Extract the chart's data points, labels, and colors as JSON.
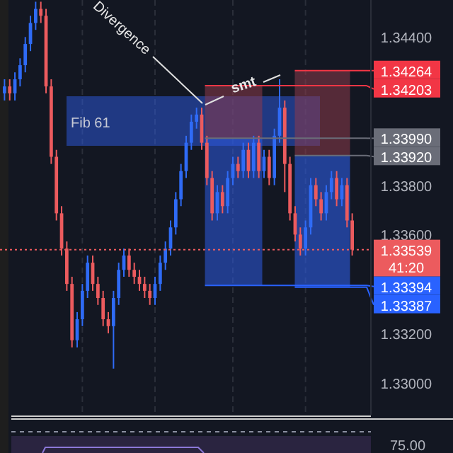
{
  "chart_data": {
    "type": "candlestick",
    "categories": [
      null,
      null,
      null,
      null,
      null,
      null,
      null,
      null,
      null,
      null,
      null,
      null,
      null,
      null,
      null,
      null,
      null,
      null,
      null,
      null,
      null,
      null,
      null,
      null,
      null,
      null,
      null,
      null,
      null,
      null,
      null,
      null,
      null,
      null,
      null,
      null,
      null,
      null,
      null,
      null,
      null,
      null,
      null,
      null,
      null,
      null,
      null,
      null,
      null,
      null,
      null,
      null,
      null,
      null,
      null,
      null,
      null,
      null,
      null,
      null,
      null,
      null,
      null,
      null,
      null,
      null,
      null,
      null
    ],
    "ohlc": [
      [
        1.34172,
        1.34229,
        1.34143,
        1.342
      ],
      [
        1.342,
        1.34229,
        1.34143,
        1.34172
      ],
      [
        1.34172,
        1.34257,
        1.34143,
        1.34229
      ],
      [
        1.34229,
        1.34314,
        1.342,
        1.34286
      ],
      [
        1.34286,
        1.344,
        1.34257,
        1.34372
      ],
      [
        1.34372,
        1.34486,
        1.34343,
        1.34457
      ],
      [
        1.34457,
        1.34543,
        1.34429,
        1.34514
      ],
      [
        1.34514,
        1.34543,
        1.34457,
        1.34486
      ],
      [
        1.34486,
        1.34514,
        1.34172,
        1.342
      ],
      [
        1.342,
        1.34229,
        1.33886,
        1.33915
      ],
      [
        1.33915,
        1.33943,
        1.33657,
        1.33686
      ],
      [
        1.33686,
        1.33715,
        1.33515,
        1.33543
      ],
      [
        1.33543,
        1.33572,
        1.33372,
        1.334
      ],
      [
        1.334,
        1.33429,
        1.33143,
        1.33172
      ],
      [
        1.33172,
        1.33286,
        1.33143,
        1.33257
      ],
      [
        1.33257,
        1.334,
        1.33229,
        1.33372
      ],
      [
        1.33372,
        1.33515,
        1.33343,
        1.33486
      ],
      [
        1.33486,
        1.33515,
        1.33372,
        1.334
      ],
      [
        1.334,
        1.33429,
        1.33315,
        1.33343
      ],
      [
        1.33343,
        1.33372,
        1.33229,
        1.33257
      ],
      [
        1.33257,
        1.33286,
        1.332,
        1.33229
      ],
      [
        1.33229,
        1.33372,
        1.33057,
        1.33343
      ],
      [
        1.33343,
        1.33486,
        1.33315,
        1.33457
      ],
      [
        1.33457,
        1.33543,
        1.33429,
        1.33515
      ],
      [
        1.33515,
        1.33543,
        1.33429,
        1.33457
      ],
      [
        1.33457,
        1.33486,
        1.334,
        1.33429
      ],
      [
        1.33429,
        1.33457,
        1.33372,
        1.334
      ],
      [
        1.334,
        1.33429,
        1.33343,
        1.33372
      ],
      [
        1.33372,
        1.334,
        1.33315,
        1.33343
      ],
      [
        1.33343,
        1.33429,
        1.33315,
        1.334
      ],
      [
        1.334,
        1.33515,
        1.33372,
        1.33486
      ],
      [
        1.33486,
        1.33572,
        1.33457,
        1.33543
      ],
      [
        1.33543,
        1.33657,
        1.33515,
        1.33629
      ],
      [
        1.33629,
        1.33772,
        1.336,
        1.33743
      ],
      [
        1.33743,
        1.33886,
        1.33715,
        1.33857
      ],
      [
        1.33857,
        1.34,
        1.33829,
        1.33972
      ],
      [
        1.33972,
        1.34086,
        1.33943,
        1.34057
      ],
      [
        1.34057,
        1.34114,
        1.34029,
        1.34086
      ],
      [
        1.34086,
        1.34114,
        1.33943,
        1.33972
      ],
      [
        1.33972,
        1.34,
        1.338,
        1.33829
      ],
      [
        1.33829,
        1.33857,
        1.33657,
        1.33686
      ],
      [
        1.33686,
        1.338,
        1.33657,
        1.33772
      ],
      [
        1.33772,
        1.338,
        1.33686,
        1.33715
      ],
      [
        1.33715,
        1.33857,
        1.33686,
        1.33829
      ],
      [
        1.33829,
        1.33915,
        1.338,
        1.33886
      ],
      [
        1.33886,
        1.33915,
        1.33829,
        1.33857
      ],
      [
        1.33857,
        1.33972,
        1.33829,
        1.33943
      ],
      [
        1.33943,
        1.33972,
        1.33829,
        1.33857
      ],
      [
        1.33857,
        1.34,
        1.33829,
        1.33972
      ],
      [
        1.33972,
        1.34,
        1.33829,
        1.33857
      ],
      [
        1.33857,
        1.33943,
        1.33829,
        1.33915
      ],
      [
        1.33915,
        1.33943,
        1.338,
        1.33829
      ],
      [
        1.33829,
        1.34029,
        1.338,
        1.34
      ],
      [
        1.34,
        1.34229,
        1.33972,
        1.34114
      ],
      [
        1.34114,
        1.34143,
        1.33772,
        1.33886
      ],
      [
        1.33886,
        1.33915,
        1.33657,
        1.33686
      ],
      [
        1.33686,
        1.33715,
        1.33572,
        1.336
      ],
      [
        1.336,
        1.33629,
        1.33515,
        1.33543
      ],
      [
        1.33543,
        1.33657,
        1.33515,
        1.33629
      ],
      [
        1.33629,
        1.33829,
        1.336,
        1.338
      ],
      [
        1.338,
        1.33829,
        1.33715,
        1.33743
      ],
      [
        1.33743,
        1.33772,
        1.33657,
        1.33686
      ],
      [
        1.33686,
        1.338,
        1.33657,
        1.33772
      ],
      [
        1.33772,
        1.33857,
        1.33743,
        1.33829
      ],
      [
        1.33829,
        1.33857,
        1.33715,
        1.33743
      ],
      [
        1.33743,
        1.33829,
        1.33715,
        1.338
      ],
      [
        1.338,
        1.33829,
        1.33629,
        1.33657
      ],
      [
        1.33657,
        1.33686,
        1.33515,
        1.33539
      ]
    ],
    "ylim": [
      1.3287,
      1.3455
    ],
    "yticks": [
      {
        "value": 1.344,
        "label": "1.34400"
      },
      {
        "value": 1.338,
        "label": "1.33800"
      },
      {
        "value": 1.336,
        "label": "1.33600"
      },
      {
        "value": 1.332,
        "label": "1.33200"
      },
      {
        "value": 1.33,
        "label": "1.33000"
      }
    ],
    "grid": "x",
    "ref_lines": [
      {
        "axis": "y",
        "value": 1.34264,
        "label": "1.34264",
        "color": "#f23645"
      },
      {
        "axis": "y",
        "value": 1.34203,
        "label": "1.34203",
        "color": "#f23645"
      },
      {
        "axis": "y",
        "value": 1.3399,
        "label": "1.33990",
        "color": "#6a6d78"
      },
      {
        "axis": "y",
        "value": 1.3392,
        "label": "1.33920",
        "color": "#6a6d78"
      },
      {
        "axis": "y",
        "value": 1.33539,
        "label": "1.33539",
        "color": "#ec5b5e",
        "line_style": "dotted"
      },
      {
        "axis": "y",
        "value": 1.33394,
        "label": "1.33394",
        "color": "#2962ff"
      },
      {
        "axis": "y",
        "value": 1.33387,
        "label": "1.33387",
        "color": "#2962ff"
      }
    ],
    "annotations": [
      "Divergence",
      "smt",
      "Fib 61",
      "41:20",
      "75.00"
    ]
  }
}
